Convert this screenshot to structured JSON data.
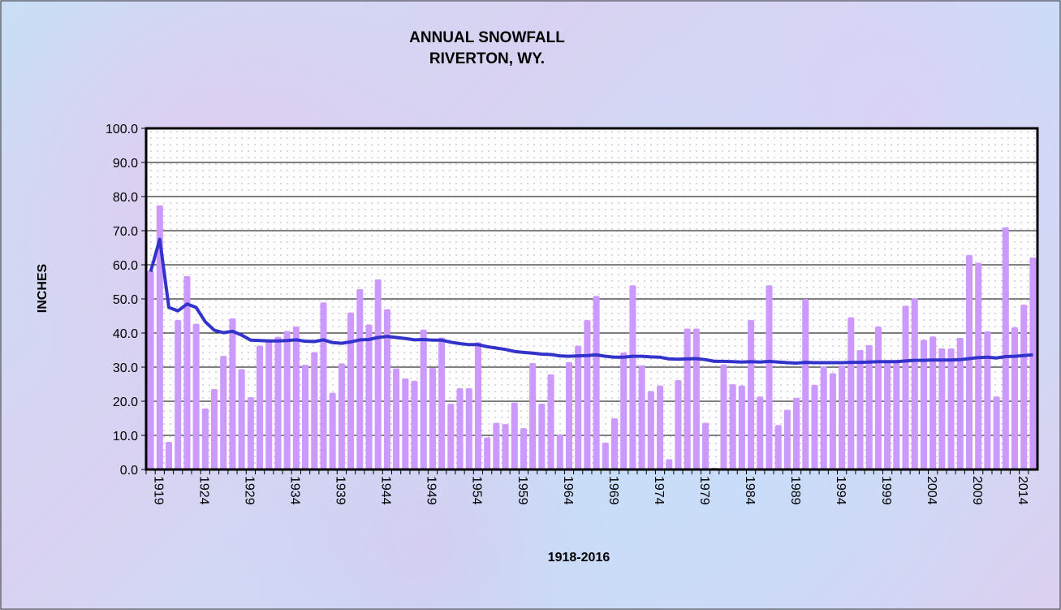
{
  "chart_data": {
    "type": "bar",
    "title": "ANNUAL SNOWFALL",
    "subtitle": "RIVERTON, WY.",
    "xlabel": "1918-2016",
    "ylabel": "INCHES",
    "ylim": [
      0,
      100
    ],
    "yticks": [
      "0.0",
      "10.0",
      "20.0",
      "30.0",
      "40.0",
      "50.0",
      "60.0",
      "70.0",
      "80.0",
      "90.0",
      "100.0"
    ],
    "x_tick_labels": [
      "1919",
      "1924",
      "1929",
      "1934",
      "1939",
      "1944",
      "1949",
      "1954",
      "1959",
      "1964",
      "1969",
      "1974",
      "1979",
      "1984",
      "1989",
      "1994",
      "1999",
      "2004",
      "2009",
      "2014"
    ],
    "grid": true,
    "x_start": 1919,
    "x_end": 2016,
    "colors": {
      "bars": "#cc99ff",
      "line": "#3333cc"
    },
    "series": [
      {
        "type": "bar",
        "values": [
          58.3,
          77.4,
          8.1,
          43.8,
          56.7,
          42.7,
          17.9,
          23.6,
          33.3,
          44.3,
          29.4,
          21.2,
          36.3,
          38.1,
          38.9,
          40.6,
          41.9,
          30.7,
          34.4,
          49.0,
          22.5,
          31.1,
          46.0,
          52.9,
          42.5,
          55.7,
          47.0,
          29.6,
          26.7,
          26.0,
          41.0,
          29.8,
          38.7,
          19.3,
          23.8,
          23.8,
          37.3,
          9.4,
          13.7,
          13.3,
          19.6,
          12.1,
          31.2,
          19.3,
          27.9,
          10.3,
          31.5,
          36.3,
          43.8,
          50.9,
          7.9,
          15.0,
          34.3,
          54.0,
          30.5,
          23.0,
          24.6,
          3.0,
          26.2,
          41.3,
          41.3,
          13.7,
          0.5,
          30.8,
          25.0,
          24.6,
          43.8,
          21.4,
          54.0,
          13.0,
          17.5,
          21.0,
          50.0,
          24.8,
          30.2,
          28.2,
          30.5,
          44.6,
          35.0,
          36.5,
          41.9,
          32.0,
          32.0,
          48.0,
          50.2,
          38.0,
          39.0,
          35.5,
          35.5,
          38.6,
          62.9,
          60.6,
          40.5,
          21.4,
          71.0,
          41.7,
          48.3,
          62.1
        ]
      },
      {
        "type": "line",
        "values": [
          58,
          67.5,
          47.5,
          46.5,
          48.5,
          47.5,
          43.3,
          40.8,
          40.1,
          40.5,
          39.4,
          37.9,
          37.8,
          37.7,
          37.7,
          37.8,
          38.0,
          37.6,
          37.5,
          38.0,
          37.2,
          37.0,
          37.4,
          38.0,
          38.1,
          38.7,
          39.0,
          38.7,
          38.4,
          38.0,
          38.1,
          37.9,
          37.9,
          37.3,
          36.9,
          36.6,
          36.6,
          36.0,
          35.6,
          35.2,
          34.6,
          34.3,
          34.1,
          33.8,
          33.7,
          33.3,
          33.2,
          33.3,
          33.4,
          33.6,
          33.2,
          32.9,
          32.9,
          33.2,
          33.2,
          33.0,
          32.9,
          32.4,
          32.3,
          32.4,
          32.5,
          32.2,
          31.7,
          31.7,
          31.6,
          31.5,
          31.6,
          31.5,
          31.7,
          31.5,
          31.3,
          31.2,
          31.4,
          31.3,
          31.3,
          31.3,
          31.3,
          31.4,
          31.4,
          31.5,
          31.6,
          31.6,
          31.6,
          31.8,
          32.0,
          32.0,
          32.1,
          32.1,
          32.1,
          32.2,
          32.5,
          32.8,
          32.9,
          32.7,
          33.1,
          33.2,
          33.4,
          33.6
        ]
      }
    ]
  }
}
